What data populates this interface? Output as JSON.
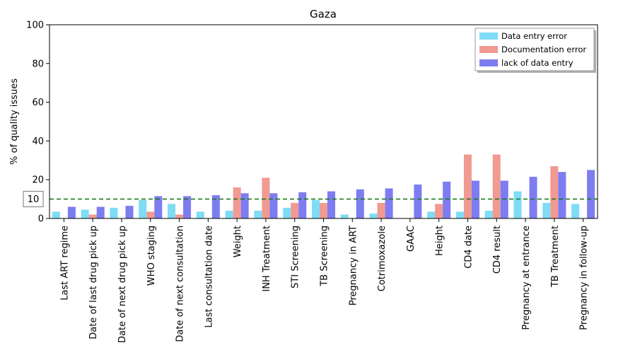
{
  "chart_data": {
    "type": "bar",
    "title": "Gaza",
    "xlabel": "",
    "ylabel": "% of quality issues",
    "ylim": [
      0,
      100
    ],
    "yticks": [
      0,
      20,
      40,
      60,
      80,
      100
    ],
    "grid": false,
    "legend_position": "top-right",
    "reference_line": {
      "value": 10,
      "label": "10",
      "color": "#1a7a1a",
      "style": "dashed"
    },
    "categories": [
      "Last ART regime",
      "Date of last drug pick up",
      "Date of next drug pick up",
      "WHO staging",
      "Date of next consultation",
      "Last consultation date",
      "Weight",
      "INH Treatment",
      "STI Screening",
      "TB Screening",
      "Pregnancy in ART",
      "Cotrimoxazole",
      "GAAC",
      "Height",
      "CD4 date",
      "CD4 result",
      "Pregnancy at entrance",
      "TB Treatment",
      "Pregnancy in follow-up"
    ],
    "series": [
      {
        "name": "Data entry error",
        "color": "#7fdcf5",
        "values": [
          3.5,
          4.5,
          5.5,
          9.5,
          7.5,
          3.5,
          4.0,
          4.0,
          5.5,
          9.5,
          2.0,
          2.5,
          0,
          3.5,
          3.5,
          4.0,
          14.0,
          8.0,
          7.5
        ]
      },
      {
        "name": "Documentation error",
        "color": "#f09a92",
        "values": [
          0,
          2.0,
          0,
          3.5,
          2.0,
          0,
          16.0,
          21.0,
          8.0,
          8.0,
          0,
          8.0,
          0,
          7.5,
          33.0,
          33.0,
          0,
          27.0,
          0
        ]
      },
      {
        "name": "lack of data entry",
        "color": "#7d7cf0",
        "values": [
          6.0,
          6.0,
          6.5,
          11.5,
          11.5,
          12.0,
          13.0,
          13.0,
          13.5,
          14.0,
          15.0,
          15.5,
          17.5,
          19.0,
          19.5,
          19.5,
          21.5,
          24.0,
          25.0
        ]
      }
    ]
  }
}
